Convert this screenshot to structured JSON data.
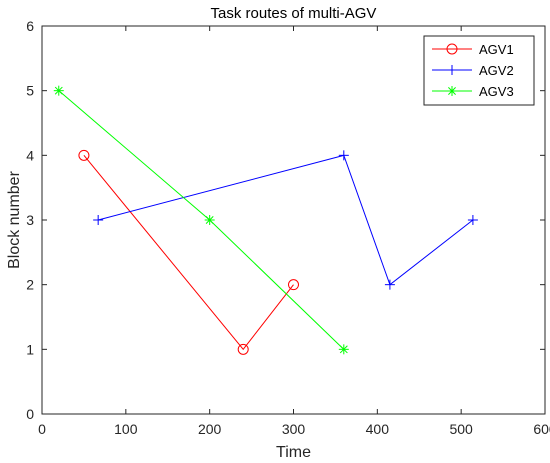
{
  "chart_data": {
    "type": "line",
    "title": "Task routes of multi-AGV",
    "xlabel": "Time",
    "ylabel": "Block number",
    "xlim": [
      0,
      600
    ],
    "ylim": [
      0,
      6
    ],
    "xticks": [
      0,
      100,
      200,
      300,
      400,
      500,
      600
    ],
    "yticks": [
      0,
      1,
      2,
      3,
      4,
      5,
      6
    ],
    "grid": false,
    "legend_position": "top-right",
    "series": [
      {
        "name": "AGV1",
        "color": "#ff0000",
        "marker": "circle",
        "x": [
          50,
          240,
          300
        ],
        "y": [
          4,
          1,
          2
        ]
      },
      {
        "name": "AGV2",
        "color": "#0000ff",
        "marker": "plus",
        "x": [
          67,
          360,
          415,
          514
        ],
        "y": [
          3,
          4,
          2,
          3
        ]
      },
      {
        "name": "AGV3",
        "color": "#00ff00",
        "marker": "asterisk",
        "x": [
          20,
          200,
          360
        ],
        "y": [
          5,
          3,
          1
        ]
      }
    ]
  }
}
